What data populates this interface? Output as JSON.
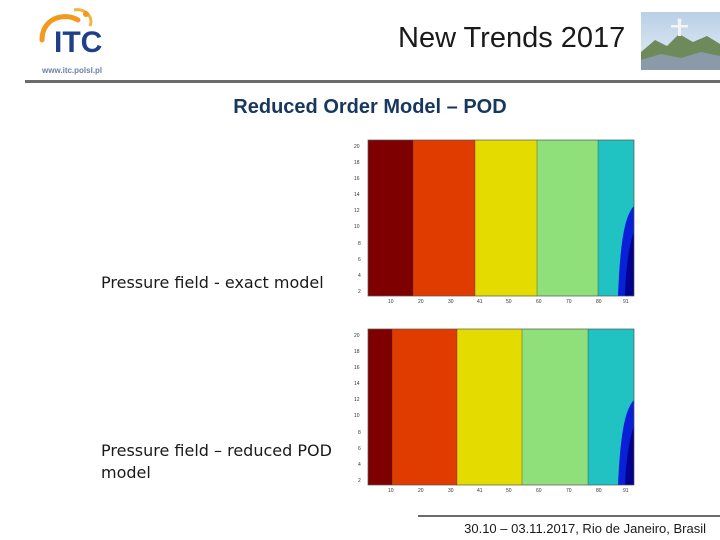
{
  "header": {
    "logo_text": "ITC",
    "logo_url": "www.itc.polsl.pl",
    "title": "New Trends 2017",
    "photo": "rio-de-janeiro-christ-statue-photo"
  },
  "slide": {
    "title": "Reduced Order Model – POD"
  },
  "plots": [
    {
      "caption": "Pressure field - exact model",
      "x_ticks": [
        "10",
        "20",
        "30",
        "41",
        "50",
        "60",
        "70",
        "80",
        "91"
      ],
      "y_ticks": [
        "2",
        "4",
        "6",
        "8",
        "10",
        "12",
        "14",
        "16",
        "18",
        "20"
      ],
      "bands": [
        "#7f0000",
        "#e03c00",
        "#f0c800",
        "#d9dc00",
        "#94e07a",
        "#20c2c2"
      ]
    },
    {
      "caption": "Pressure field – reduced POD model",
      "x_ticks": [
        "10",
        "20",
        "30",
        "41",
        "50",
        "60",
        "70",
        "80",
        "91"
      ],
      "y_ticks": [
        "2",
        "4",
        "6",
        "8",
        "10",
        "12",
        "14",
        "16",
        "18",
        "20"
      ],
      "bands": [
        "#7f0000",
        "#e03c00",
        "#f0c800",
        "#d9dc00",
        "#94e07a",
        "#20c2c2"
      ]
    }
  ],
  "footer": {
    "text": "30.10 – 03.11.2017, Rio de Janeiro, Brasil"
  }
}
